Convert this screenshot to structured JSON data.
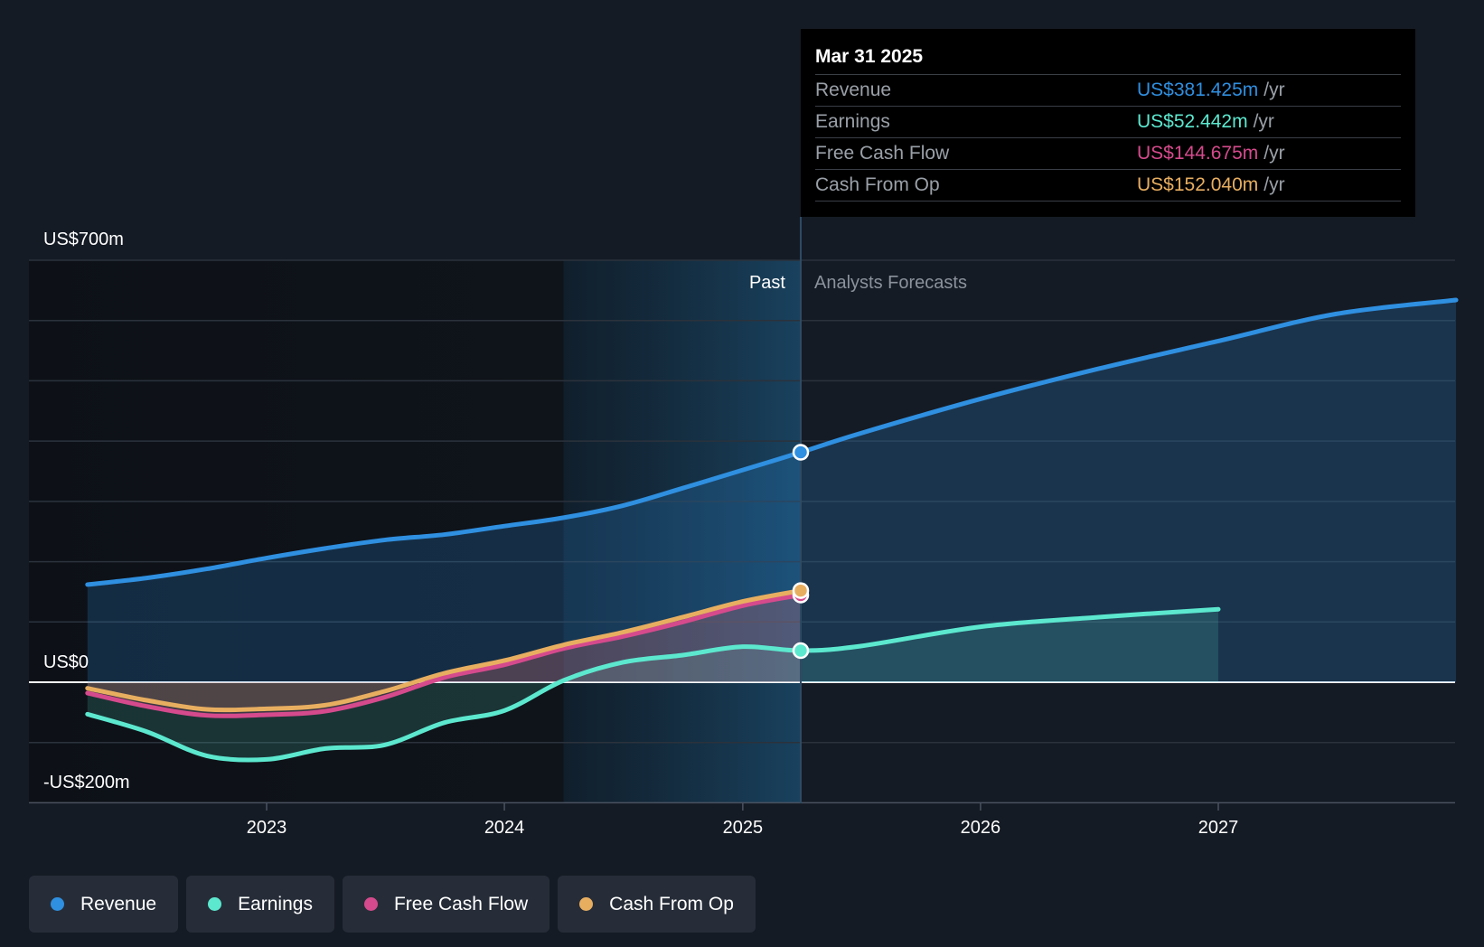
{
  "chart_data": {
    "type": "line",
    "y_unit_labels": {
      "top": "US$700m",
      "zero": "US$0",
      "bottom": "-US$200m"
    },
    "ylim": [
      -200,
      700
    ],
    "grid": true,
    "x_ticks": [
      "2023",
      "2024",
      "2025",
      "2026",
      "2027"
    ],
    "regions": {
      "past_label": "Past",
      "forecast_label": "Analysts Forecasts",
      "divider_date": "2025-03-31",
      "highlight_start": "2024-04-01"
    },
    "series": [
      {
        "name": "Revenue",
        "color": "#2f8fe0",
        "points": [
          [
            "2022-04-01",
            162
          ],
          [
            "2022-07-01",
            173
          ],
          [
            "2022-10-01",
            188
          ],
          [
            "2023-01-01",
            206
          ],
          [
            "2023-04-01",
            222
          ],
          [
            "2023-07-01",
            236
          ],
          [
            "2023-10-01",
            245
          ],
          [
            "2024-01-01",
            259
          ],
          [
            "2024-04-01",
            273
          ],
          [
            "2024-07-01",
            293
          ],
          [
            "2024-10-01",
            322
          ],
          [
            "2025-01-01",
            352
          ],
          [
            "2025-03-31",
            381.425
          ],
          [
            "2025-07-01",
            413
          ],
          [
            "2026-01-01",
            470
          ],
          [
            "2026-07-01",
            520
          ],
          [
            "2027-01-01",
            566
          ],
          [
            "2027-07-01",
            611
          ],
          [
            "2028-01-01",
            634
          ]
        ]
      },
      {
        "name": "Earnings",
        "color": "#5ce8cf",
        "points": [
          [
            "2022-04-01",
            -53
          ],
          [
            "2022-07-01",
            -82
          ],
          [
            "2022-10-01",
            -122
          ],
          [
            "2023-01-01",
            -128
          ],
          [
            "2023-04-01",
            -110
          ],
          [
            "2023-07-01",
            -104
          ],
          [
            "2023-10-01",
            -67
          ],
          [
            "2024-01-01",
            -47
          ],
          [
            "2024-04-01",
            3
          ],
          [
            "2024-07-01",
            33
          ],
          [
            "2024-10-01",
            45
          ],
          [
            "2025-01-01",
            59
          ],
          [
            "2025-03-31",
            52.442
          ],
          [
            "2025-07-01",
            60
          ],
          [
            "2026-01-01",
            92
          ],
          [
            "2026-07-01",
            108
          ],
          [
            "2027-01-01",
            121
          ]
        ]
      },
      {
        "name": "Free Cash Flow",
        "color": "#d54a8c",
        "points": [
          [
            "2022-04-01",
            -18
          ],
          [
            "2022-07-01",
            -40
          ],
          [
            "2022-10-01",
            -55
          ],
          [
            "2023-01-01",
            -54
          ],
          [
            "2023-04-01",
            -48
          ],
          [
            "2023-07-01",
            -25
          ],
          [
            "2023-10-01",
            8
          ],
          [
            "2024-01-01",
            29
          ],
          [
            "2024-04-01",
            56
          ],
          [
            "2024-07-01",
            76
          ],
          [
            "2024-10-01",
            100
          ],
          [
            "2025-01-01",
            127
          ],
          [
            "2025-03-31",
            144.675
          ]
        ]
      },
      {
        "name": "Cash From Op",
        "color": "#e8ae60",
        "points": [
          [
            "2022-04-01",
            -10
          ],
          [
            "2022-07-01",
            -30
          ],
          [
            "2022-10-01",
            -45
          ],
          [
            "2023-01-01",
            -44
          ],
          [
            "2023-04-01",
            -38
          ],
          [
            "2023-07-01",
            -15
          ],
          [
            "2023-10-01",
            15
          ],
          [
            "2024-01-01",
            36
          ],
          [
            "2024-04-01",
            62
          ],
          [
            "2024-07-01",
            83
          ],
          [
            "2024-10-01",
            108
          ],
          [
            "2025-01-01",
            134
          ],
          [
            "2025-03-31",
            152.04
          ]
        ]
      }
    ]
  },
  "tooltip": {
    "date": "Mar 31 2025",
    "unit": "/yr",
    "rows": [
      {
        "label": "Revenue",
        "value": "US$381.425m",
        "color": "#2f8fe0"
      },
      {
        "label": "Earnings",
        "value": "US$52.442m",
        "color": "#5ce8cf"
      },
      {
        "label": "Free Cash Flow",
        "value": "US$144.675m",
        "color": "#d54a8c"
      },
      {
        "label": "Cash From Op",
        "value": "US$152.040m",
        "color": "#e8ae60"
      }
    ]
  },
  "legend": [
    {
      "label": "Revenue",
      "color": "#2f8fe0"
    },
    {
      "label": "Earnings",
      "color": "#5ce8cf"
    },
    {
      "label": "Free Cash Flow",
      "color": "#d54a8c"
    },
    {
      "label": "Cash From Op",
      "color": "#e8ae60"
    }
  ]
}
